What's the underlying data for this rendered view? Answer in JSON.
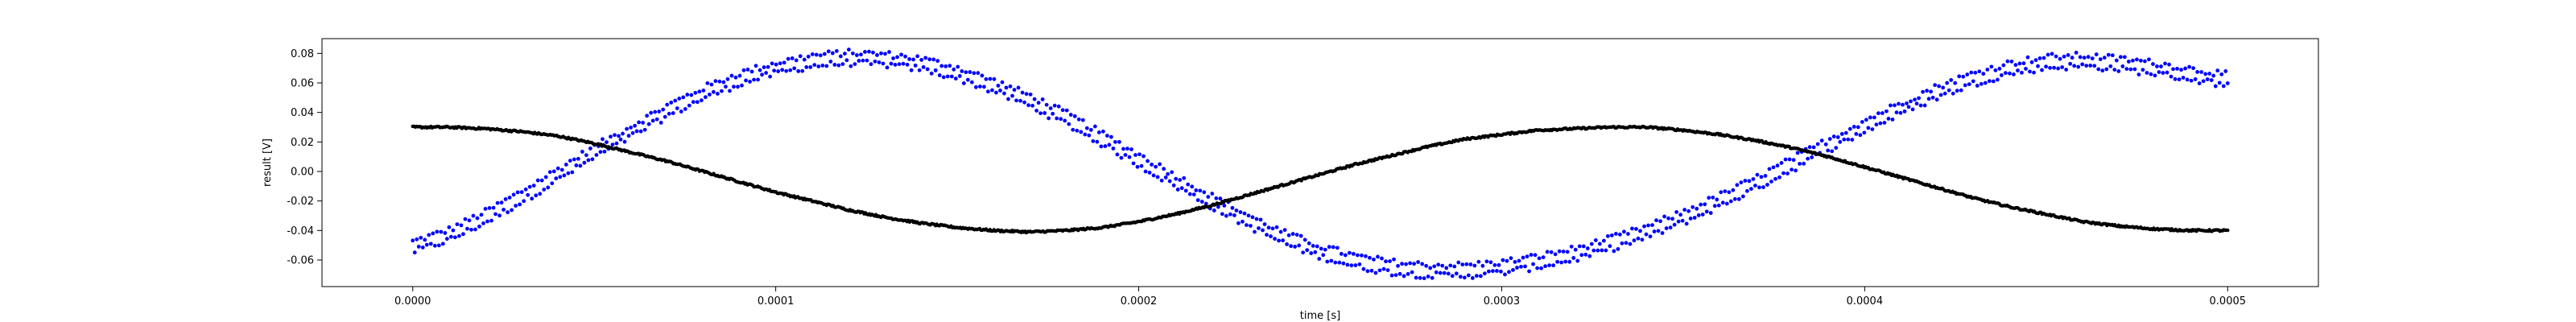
{
  "chart_data": {
    "type": "scatter",
    "title": "",
    "xlabel": "time [s]",
    "ylabel": "result [V]",
    "xlim": [
      -2.5e-05,
      0.000525
    ],
    "ylim": [
      -0.078,
      0.09
    ],
    "xticks": [
      0.0,
      0.0001,
      0.0002,
      0.0003,
      0.0004,
      0.0005
    ],
    "xtick_labels": [
      "0.0000",
      "0.0001",
      "0.0002",
      "0.0003",
      "0.0004",
      "0.0005"
    ],
    "yticks": [
      -0.06,
      -0.04,
      -0.02,
      0.0,
      0.02,
      0.04,
      0.06,
      0.08
    ],
    "ytick_labels": [
      "-0.06",
      "-0.04",
      "-0.02",
      "0.00",
      "0.02",
      "0.04",
      "0.06",
      "0.08"
    ],
    "grid": false,
    "legend": "none",
    "series": [
      {
        "color": "#0000ff",
        "values": [
          [
            0.0,
            -0.051
          ],
          [
            1e-05,
            -0.043
          ],
          [
            2e-05,
            -0.031
          ],
          [
            3e-05,
            -0.017
          ],
          [
            4e-05,
            -0.002
          ],
          [
            5e-05,
            0.013
          ],
          [
            6e-05,
            0.027
          ],
          [
            7e-05,
            0.041
          ],
          [
            8e-05,
            0.053
          ],
          [
            9e-05,
            0.063
          ],
          [
            0.0001,
            0.07
          ],
          [
            0.00011,
            0.075
          ],
          [
            0.00012,
            0.077
          ],
          [
            0.00013,
            0.076
          ],
          [
            0.00014,
            0.073
          ],
          [
            0.00015,
            0.067
          ],
          [
            0.00016,
            0.058
          ],
          [
            0.00017,
            0.048
          ],
          [
            0.00018,
            0.036
          ],
          [
            0.00019,
            0.022
          ],
          [
            0.0002,
            0.008
          ],
          [
            0.00021,
            -0.006
          ],
          [
            0.00022,
            -0.02
          ],
          [
            0.00023,
            -0.033
          ],
          [
            0.00024,
            -0.045
          ],
          [
            0.00025,
            -0.054
          ],
          [
            0.00026,
            -0.061
          ],
          [
            0.00027,
            -0.065
          ],
          [
            0.00028,
            -0.067
          ],
          [
            0.00029,
            -0.067
          ],
          [
            0.0003,
            -0.065
          ],
          [
            0.00031,
            -0.061
          ],
          [
            0.00032,
            -0.056
          ],
          [
            0.00033,
            -0.049
          ],
          [
            0.00034,
            -0.041
          ],
          [
            0.00035,
            -0.031
          ],
          [
            0.00036,
            -0.02
          ],
          [
            0.00037,
            -0.008
          ],
          [
            0.00038,
            0.005
          ],
          [
            0.00039,
            0.018
          ],
          [
            0.0004,
            0.031
          ],
          [
            0.00041,
            0.043
          ],
          [
            0.00042,
            0.054
          ],
          [
            0.00043,
            0.063
          ],
          [
            0.00044,
            0.07
          ],
          [
            0.00045,
            0.074
          ],
          [
            0.00046,
            0.075
          ],
          [
            0.00047,
            0.073
          ],
          [
            0.00048,
            0.07
          ],
          [
            0.00049,
            0.066
          ],
          [
            0.0005,
            0.062
          ]
        ]
      },
      {
        "color": "#000000",
        "values": [
          [
            0.0,
            0.03
          ],
          [
            1e-05,
            0.03
          ],
          [
            2e-05,
            0.029
          ],
          [
            3e-05,
            0.027
          ],
          [
            4e-05,
            0.024
          ],
          [
            5e-05,
            0.019
          ],
          [
            6e-05,
            0.013
          ],
          [
            7e-05,
            0.007
          ],
          [
            8e-05,
            0.0
          ],
          [
            9e-05,
            -0.007
          ],
          [
            0.0001,
            -0.014
          ],
          [
            0.00011,
            -0.02
          ],
          [
            0.00012,
            -0.026
          ],
          [
            0.00013,
            -0.031
          ],
          [
            0.00014,
            -0.035
          ],
          [
            0.00015,
            -0.038
          ],
          [
            0.00016,
            -0.04
          ],
          [
            0.00017,
            -0.041
          ],
          [
            0.00018,
            -0.04
          ],
          [
            0.00019,
            -0.038
          ],
          [
            0.0002,
            -0.034
          ],
          [
            0.00021,
            -0.029
          ],
          [
            0.00022,
            -0.023
          ],
          [
            0.00023,
            -0.016
          ],
          [
            0.00024,
            -0.009
          ],
          [
            0.00025,
            -0.002
          ],
          [
            0.00026,
            0.005
          ],
          [
            0.00027,
            0.011
          ],
          [
            0.00028,
            0.017
          ],
          [
            0.00029,
            0.022
          ],
          [
            0.0003,
            0.025
          ],
          [
            0.00031,
            0.028
          ],
          [
            0.00032,
            0.029
          ],
          [
            0.00033,
            0.03
          ],
          [
            0.00034,
            0.03
          ],
          [
            0.00035,
            0.028
          ],
          [
            0.00036,
            0.025
          ],
          [
            0.00037,
            0.021
          ],
          [
            0.00038,
            0.016
          ],
          [
            0.00039,
            0.01
          ],
          [
            0.0004,
            0.003
          ],
          [
            0.00041,
            -0.004
          ],
          [
            0.00042,
            -0.011
          ],
          [
            0.00043,
            -0.018
          ],
          [
            0.00044,
            -0.024
          ],
          [
            0.00045,
            -0.029
          ],
          [
            0.00046,
            -0.034
          ],
          [
            0.00047,
            -0.037
          ],
          [
            0.00048,
            -0.039
          ],
          [
            0.00049,
            -0.04
          ],
          [
            0.0005,
            -0.04
          ]
        ]
      }
    ]
  }
}
